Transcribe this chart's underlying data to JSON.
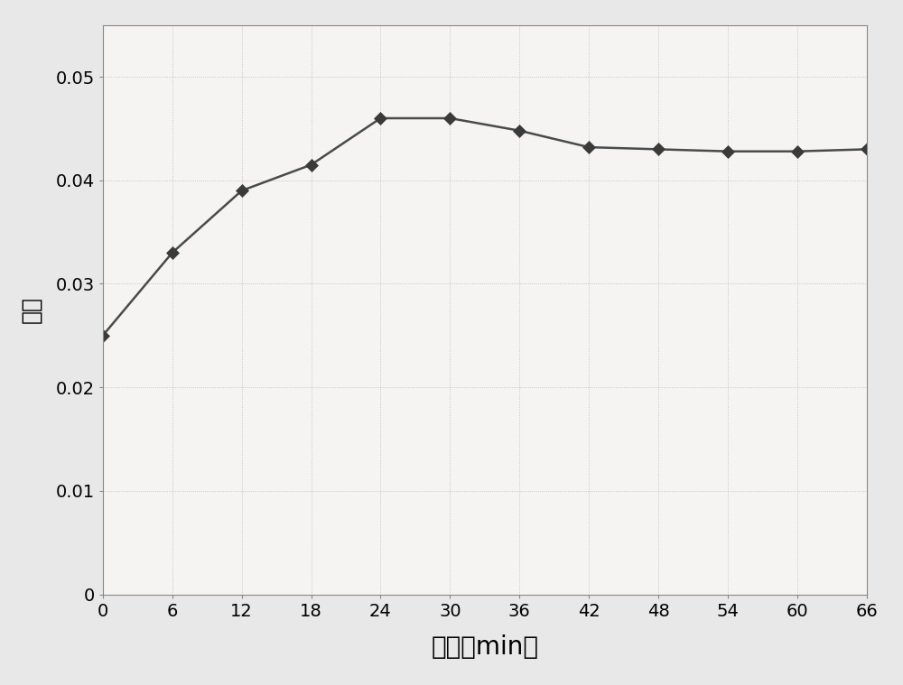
{
  "x": [
    0,
    6,
    12,
    18,
    24,
    30,
    36,
    42,
    48,
    54,
    60,
    66
  ],
  "y": [
    0.025,
    0.033,
    0.039,
    0.0415,
    0.046,
    0.046,
    0.0448,
    0.0432,
    0.043,
    0.0428,
    0.0428,
    0.043
  ],
  "xlabel": "时间（min）",
  "ylabel": "比例",
  "xlim": [
    0,
    66
  ],
  "ylim": [
    0,
    0.055
  ],
  "xticks": [
    0,
    6,
    12,
    18,
    24,
    30,
    36,
    42,
    48,
    54,
    60,
    66
  ],
  "yticks": [
    0,
    0.01,
    0.02,
    0.03,
    0.04,
    0.05
  ],
  "ytick_labels": [
    "0",
    "0.01",
    "0.02",
    "0.03",
    "0.04",
    "0.05"
  ],
  "line_color": "#4a4a4a",
  "marker_color": "#3a3a3a",
  "bg_color": "#e8e8e8",
  "plot_bg_color": "#f5f4f2",
  "grid_color": "#aaaaaa",
  "xlabel_fontsize": 20,
  "ylabel_fontsize": 18,
  "tick_fontsize": 14,
  "marker_size": 7,
  "line_width": 1.8
}
